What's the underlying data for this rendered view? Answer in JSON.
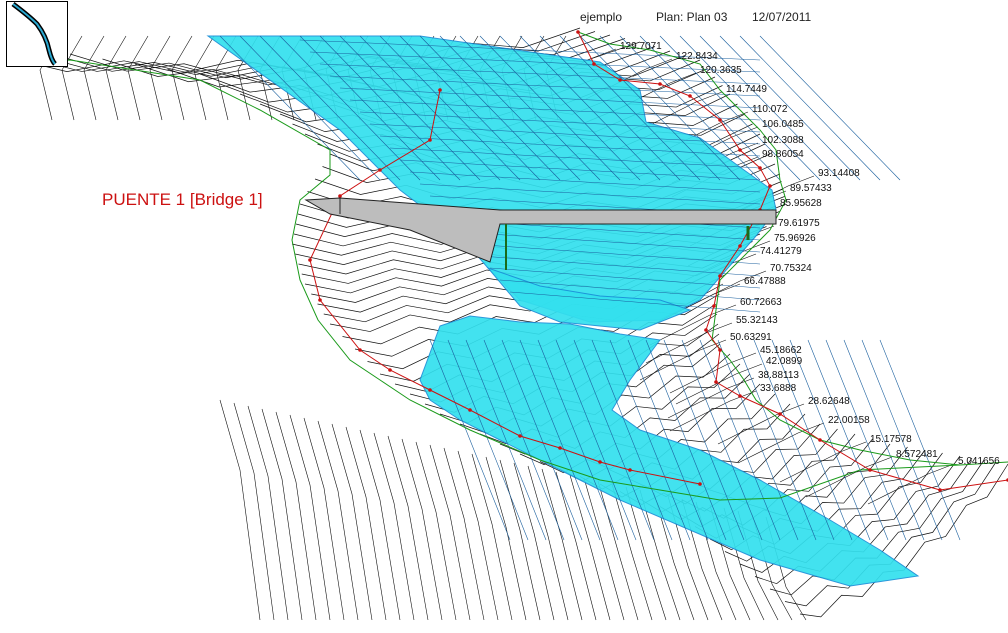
{
  "header": {
    "project": "ejemplo",
    "plan": "Plan: Plan 03",
    "date": "12/07/2011"
  },
  "bridge_label": "PUENTE 1 [Bridge 1]",
  "colors": {
    "water": "#33e0ee",
    "water_edge": "#1a8fd8",
    "mesh": "#111111",
    "thalweg": "#cc1111",
    "bank_lines": "#1a9a1a",
    "bridge_fill": "#bdbdbd",
    "label": "#cc1111"
  },
  "icons": {
    "minimap": "river-overview-icon"
  },
  "river_stations": [
    "129.7071",
    "122.8434",
    "120.3635",
    "114.7449",
    "110.072",
    "106.0485",
    "102.3088",
    "98.86054",
    "93.14408",
    "89.57433",
    "85.95628",
    "79.61975",
    "75.96926",
    "74.41279",
    "70.75324",
    "66.47888",
    "60.72663",
    "55.32143",
    "50.63291",
    "45.18662",
    "42.0899",
    "38.88113",
    "33.6888",
    "28.62648",
    "22.00158",
    "15.17578",
    "8.572481",
    "5.041656"
  ]
}
